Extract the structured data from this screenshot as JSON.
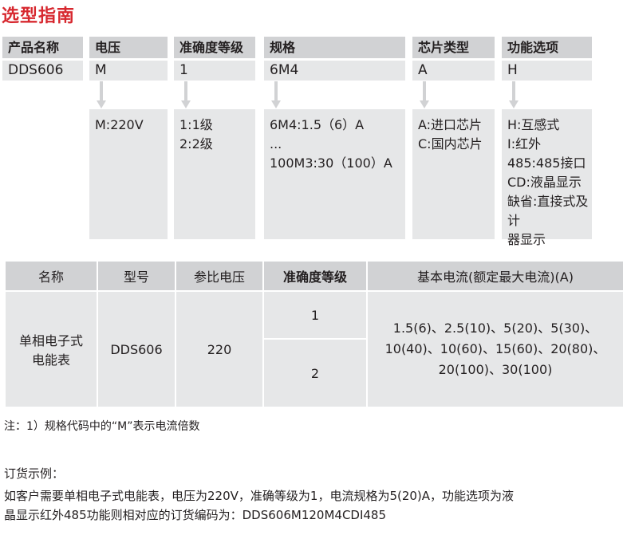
{
  "title": "选型指南",
  "code_columns": [
    {
      "header": "产品名称",
      "value": "DDS606",
      "details": []
    },
    {
      "header": "电压",
      "value": "M",
      "details": [
        "M:220V"
      ]
    },
    {
      "header": "准确度等级",
      "value": "1",
      "details": [
        "1:1级",
        "2:2级"
      ]
    },
    {
      "header": "规格",
      "value": "6M4",
      "details": [
        "6M4:1.5（6）A",
        "...",
        "100M3:30（100）A"
      ]
    },
    {
      "header": "芯片类型",
      "value": "A",
      "details": [
        "A:进口芯片",
        "C:国内芯片"
      ]
    },
    {
      "header": "功能选项",
      "value": "H",
      "details": [
        "H:互感式",
        "I:红外",
        "485:485接口",
        "CD:液晶显示",
        "缺省:直接式及计",
        "器显示"
      ]
    }
  ],
  "table": {
    "headers": [
      "名称",
      "型号",
      "参比电压",
      "准确度等级",
      "基本电流(额定最大电流)(A)"
    ],
    "name_lines": [
      "单相电子式",
      "电能表"
    ],
    "model": "DDS606",
    "voltage": "220",
    "accuracy": [
      "1",
      "2"
    ],
    "current_lines": [
      "1.5(6)、2.5(10)、5(20)、5(30)、",
      "10(40)、10(60)、15(60)、20(80)、",
      "20(100)、30(100)"
    ]
  },
  "note": "注：1）规格代码中的“M”表示电流倍数",
  "example": {
    "heading": "订货示例：",
    "lines": [
      "如客户需要单相电子式电能表，电压为220V，准确等级为1，电流规格为5(20)A，功能选项为液",
      "晶显示红外485功能则相对应的订货编码为：DDS606M120M4CDI485"
    ]
  }
}
